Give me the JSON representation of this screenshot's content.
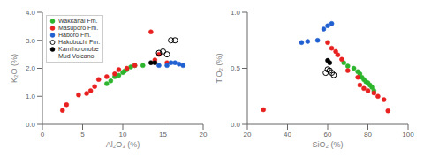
{
  "chart_data": [
    {
      "type": "scatter",
      "xlabel": "Al₂O₃ (%)",
      "ylabel": "K₂O (%)",
      "xlim": [
        0,
        20
      ],
      "ylim": [
        0.0,
        4.0
      ],
      "xticks": [
        0,
        5,
        10,
        15,
        20
      ],
      "yticks": [
        {
          "value": 0,
          "label": "0.0"
        },
        {
          "value": 1,
          "label": "1.0"
        },
        {
          "value": 2,
          "label": "2.0"
        },
        {
          "value": 3,
          "label": "3.0"
        },
        {
          "value": 4,
          "label": "4.0"
        }
      ],
      "grid": false,
      "legend": "upper left",
      "series": [
        {
          "name": "Wakkanai Fm.",
          "color": "#2db52d",
          "marker": "circle",
          "x": [
            8.0,
            8.5,
            9.0,
            9.5,
            10.0,
            10.2,
            10.5,
            11.0,
            11.5,
            12.5
          ],
          "values": [
            1.45,
            1.55,
            1.7,
            1.75,
            1.85,
            1.9,
            1.95,
            2.05,
            2.1,
            2.1
          ]
        },
        {
          "name": "Masuporo Fm.",
          "color": "#e82020",
          "marker": "circle",
          "x": [
            2.5,
            3.0,
            4.5,
            5.5,
            6.0,
            6.5,
            7.0,
            8.0,
            9.0,
            9.5,
            10.5,
            11.5,
            13.5,
            14.0,
            14.5,
            15.5
          ],
          "values": [
            0.5,
            0.7,
            1.05,
            1.1,
            1.2,
            1.35,
            1.6,
            1.7,
            1.8,
            1.95,
            2.0,
            2.1,
            3.3,
            2.3,
            2.5,
            2.2
          ]
        },
        {
          "name": "Haboro Fm.",
          "color": "#2060d0",
          "marker": "circle",
          "x": [
            14.5,
            15.5,
            16.0,
            16.5,
            17.0,
            17.5
          ],
          "values": [
            2.1,
            2.1,
            2.2,
            2.2,
            2.15,
            2.1
          ]
        },
        {
          "name": "Hakobuchi Fm.",
          "color": "#000000",
          "marker": "open_circle",
          "x": [
            14.5,
            15.0,
            15.5,
            16.0,
            16.5
          ],
          "values": [
            2.55,
            2.6,
            2.5,
            3.0,
            3.0
          ]
        },
        {
          "name": "Kamihoronobe\nMud Volcano",
          "color": "#000000",
          "marker": "circle",
          "x": [
            13.5,
            14.0
          ],
          "values": [
            2.2,
            2.2
          ]
        }
      ]
    },
    {
      "type": "scatter",
      "xlabel": "SiO₂ (%)",
      "ylabel": "TiO₂ (%)",
      "xlim": [
        20,
        100
      ],
      "ylim": [
        0.0,
        1.0
      ],
      "xticks": [
        20,
        40,
        60,
        80,
        100
      ],
      "yticks": [
        {
          "value": 0,
          "label": "0.0"
        },
        0.5,
        {
          "value": 1,
          "label": "1.0"
        }
      ],
      "grid": false,
      "series": [
        {
          "name": "Wakkanai Fm.",
          "color": "#2db52d",
          "marker": "circle",
          "x": [
            68.0,
            70.0,
            73.0,
            75.0,
            76.0,
            77.0,
            78.0,
            79.0,
            80.0,
            81.0,
            82.0,
            83.0
          ],
          "values": [
            0.55,
            0.52,
            0.5,
            0.47,
            0.45,
            0.42,
            0.4,
            0.38,
            0.37,
            0.35,
            0.33,
            0.3
          ]
        },
        {
          "name": "Masuporo Fm.",
          "color": "#e82020",
          "marker": "circle",
          "x": [
            28.0,
            60.0,
            62.0,
            64.0,
            65.0,
            67.0,
            70.0,
            75.0,
            76.0,
            78.0,
            80.0,
            83.0,
            85.0,
            88.0,
            90.0
          ],
          "values": [
            0.13,
            0.73,
            0.68,
            0.65,
            0.62,
            0.58,
            0.48,
            0.42,
            0.35,
            0.32,
            0.3,
            0.28,
            0.25,
            0.22,
            0.12
          ]
        },
        {
          "name": "Haboro Fm.",
          "color": "#2060d0",
          "marker": "circle",
          "x": [
            47.0,
            50.0,
            55.0,
            58.0,
            60.0,
            62.0
          ],
          "values": [
            0.73,
            0.74,
            0.75,
            0.85,
            0.88,
            0.9
          ]
        },
        {
          "name": "Hakobuchi Fm.",
          "color": "#000000",
          "marker": "open_circle",
          "x": [
            59.0,
            60.0,
            61.0,
            62.0,
            63.0
          ],
          "values": [
            0.46,
            0.49,
            0.48,
            0.46,
            0.44
          ]
        },
        {
          "name": "Kamihoronobe\nMud Volcano",
          "color": "#000000",
          "marker": "circle",
          "x": [
            60.0,
            61.0
          ],
          "values": [
            0.57,
            0.55
          ]
        }
      ]
    }
  ]
}
